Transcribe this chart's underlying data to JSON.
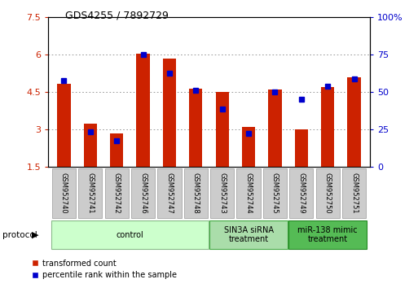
{
  "title": "GDS4255 / 7892729",
  "samples": [
    "GSM952740",
    "GSM952741",
    "GSM952742",
    "GSM952746",
    "GSM952747",
    "GSM952748",
    "GSM952743",
    "GSM952744",
    "GSM952745",
    "GSM952749",
    "GSM952750",
    "GSM952751"
  ],
  "red_values": [
    4.85,
    3.25,
    2.85,
    6.05,
    5.85,
    4.65,
    4.5,
    3.1,
    4.6,
    3.0,
    4.7,
    5.1
  ],
  "blue_values_pct": [
    57.5,
    23.75,
    17.5,
    75.0,
    62.5,
    51.25,
    38.75,
    22.5,
    50.0,
    45.0,
    53.75,
    58.75
  ],
  "ylim_left": [
    1.5,
    7.5
  ],
  "ylim_right": [
    0,
    100
  ],
  "yticks_left": [
    1.5,
    3.0,
    4.5,
    6.0,
    7.5
  ],
  "yticks_left_labels": [
    "1.5",
    "3",
    "4.5",
    "6",
    "7.5"
  ],
  "yticks_right": [
    0,
    25,
    50,
    75,
    100
  ],
  "yticks_right_labels": [
    "0",
    "25",
    "50",
    "75",
    "100%"
  ],
  "bar_bottom": 1.5,
  "bar_width": 0.5,
  "group_colors": [
    "#ccffcc",
    "#aaddaa",
    "#55bb55"
  ],
  "group_edge_colors": [
    "#88bb88",
    "#44aa44",
    "#228822"
  ],
  "group_labels": [
    "control",
    "SIN3A siRNA\ntreatment",
    "miR-138 mimic\ntreatment"
  ],
  "group_starts": [
    0,
    6,
    9
  ],
  "group_counts": [
    6,
    3,
    3
  ],
  "red_color": "#cc2200",
  "blue_color": "#0000cc",
  "grid_color": "#888888",
  "tick_label_color_left": "#cc2200",
  "tick_label_color_right": "#0000cc",
  "legend_red": "transformed count",
  "legend_blue": "percentile rank within the sample",
  "protocol_label": "protocol",
  "sample_box_color": "#cccccc",
  "sample_box_edge": "#999999"
}
